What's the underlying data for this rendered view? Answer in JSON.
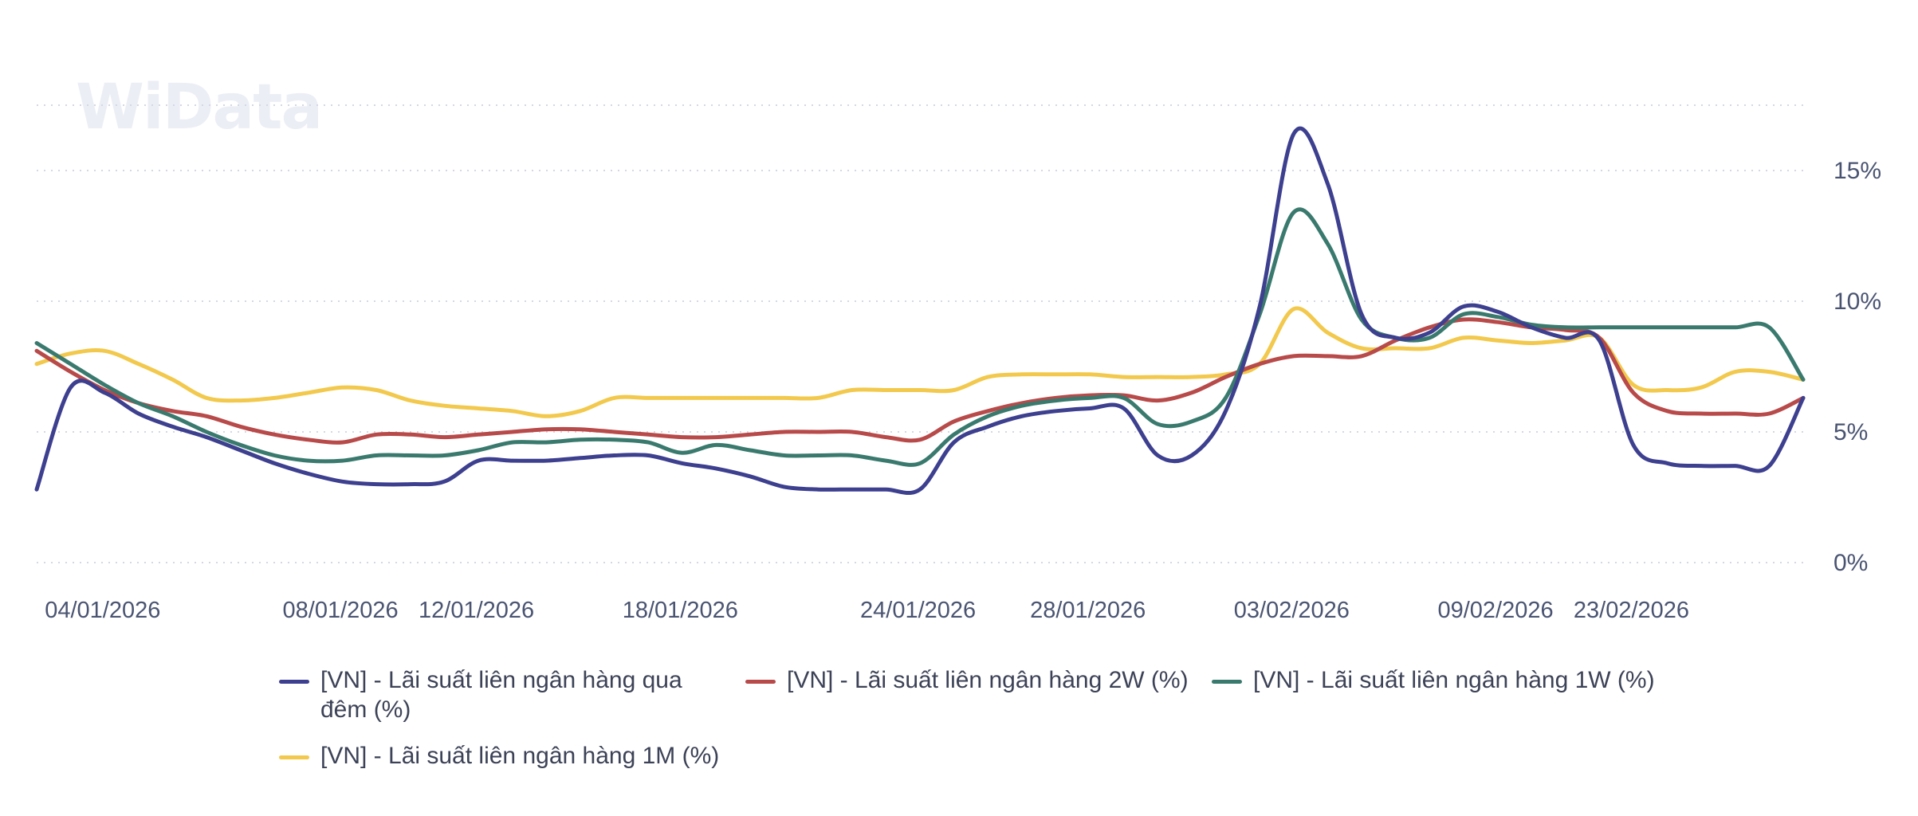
{
  "watermark": "WiData",
  "chart_data": {
    "type": "line",
    "title": "",
    "xlabel": "",
    "ylabel": "",
    "ylim": [
      0,
      17.5
    ],
    "y_ticks": [
      "0%",
      "5%",
      "10%",
      "15%"
    ],
    "y_tick_values": [
      0,
      5,
      10,
      15
    ],
    "x_ticks": [
      "04/01/2026",
      "08/01/2026",
      "12/01/2026",
      "18/01/2026",
      "24/01/2026",
      "28/01/2026",
      "03/02/2026",
      "09/02/2026",
      "23/02/2026"
    ],
    "x_tick_index": [
      2,
      9,
      13,
      19,
      26,
      31,
      37,
      43,
      47
    ],
    "grid": true,
    "legend_position": "bottom",
    "series": [
      {
        "name": "[VN] - Lãi suất liên ngân hàng qua đêm (%)",
        "color": "#3d3f8f",
        "values": [
          2.8,
          6.7,
          6.5,
          5.7,
          5.2,
          4.8,
          4.3,
          3.8,
          3.4,
          3.1,
          3.0,
          3.0,
          3.1,
          3.9,
          3.9,
          3.9,
          4.0,
          4.1,
          4.1,
          3.8,
          3.6,
          3.3,
          2.9,
          2.8,
          2.8,
          2.8,
          2.8,
          4.6,
          5.2,
          5.6,
          5.8,
          5.9,
          5.9,
          4.1,
          4.1,
          5.8,
          9.8,
          16.4,
          14.5,
          9.5,
          8.6,
          8.8,
          9.8,
          9.6,
          9.0,
          8.6,
          8.5,
          4.5,
          3.8,
          3.7,
          3.7,
          3.7,
          6.3
        ]
      },
      {
        "name": "[VN] - Lãi suất liên ngân hàng 2W (%)",
        "color": "#b84a4a",
        "values": [
          8.1,
          7.3,
          6.6,
          6.1,
          5.8,
          5.6,
          5.2,
          4.9,
          4.7,
          4.6,
          4.9,
          4.9,
          4.8,
          4.9,
          5.0,
          5.1,
          5.1,
          5.0,
          4.9,
          4.8,
          4.8,
          4.9,
          5.0,
          5.0,
          5.0,
          4.8,
          4.7,
          5.4,
          5.8,
          6.1,
          6.3,
          6.4,
          6.4,
          6.2,
          6.5,
          7.1,
          7.6,
          7.9,
          7.9,
          7.9,
          8.5,
          9.0,
          9.3,
          9.2,
          9.0,
          8.9,
          8.6,
          6.5,
          5.8,
          5.7,
          5.7,
          5.7,
          6.3
        ]
      },
      {
        "name": "[VN] - Lãi suất liên ngân hàng 1W (%)",
        "color": "#3a7a6e",
        "values": [
          8.4,
          7.6,
          6.8,
          6.1,
          5.6,
          5.0,
          4.5,
          4.1,
          3.9,
          3.9,
          4.1,
          4.1,
          4.1,
          4.3,
          4.6,
          4.6,
          4.7,
          4.7,
          4.6,
          4.2,
          4.5,
          4.3,
          4.1,
          4.1,
          4.1,
          3.9,
          3.8,
          4.9,
          5.6,
          6.0,
          6.2,
          6.3,
          6.3,
          5.3,
          5.4,
          6.3,
          9.5,
          13.4,
          12.2,
          9.3,
          8.6,
          8.6,
          9.5,
          9.4,
          9.1,
          9.0,
          9.0,
          9.0,
          9.0,
          9.0,
          9.0,
          9.0,
          7.0
        ]
      },
      {
        "name": "[VN] - Lãi suất liên ngân hàng 1M (%)",
        "color": "#f2c94c",
        "values": [
          7.6,
          8.0,
          8.1,
          7.6,
          7.0,
          6.3,
          6.2,
          6.3,
          6.5,
          6.7,
          6.6,
          6.2,
          6.0,
          5.9,
          5.8,
          5.6,
          5.8,
          6.3,
          6.3,
          6.3,
          6.3,
          6.3,
          6.3,
          6.3,
          6.6,
          6.6,
          6.6,
          6.6,
          7.1,
          7.2,
          7.2,
          7.2,
          7.1,
          7.1,
          7.1,
          7.2,
          7.6,
          9.7,
          8.8,
          8.2,
          8.2,
          8.2,
          8.6,
          8.5,
          8.4,
          8.5,
          8.6,
          6.8,
          6.6,
          6.7,
          7.3,
          7.3,
          7.0
        ]
      }
    ]
  }
}
